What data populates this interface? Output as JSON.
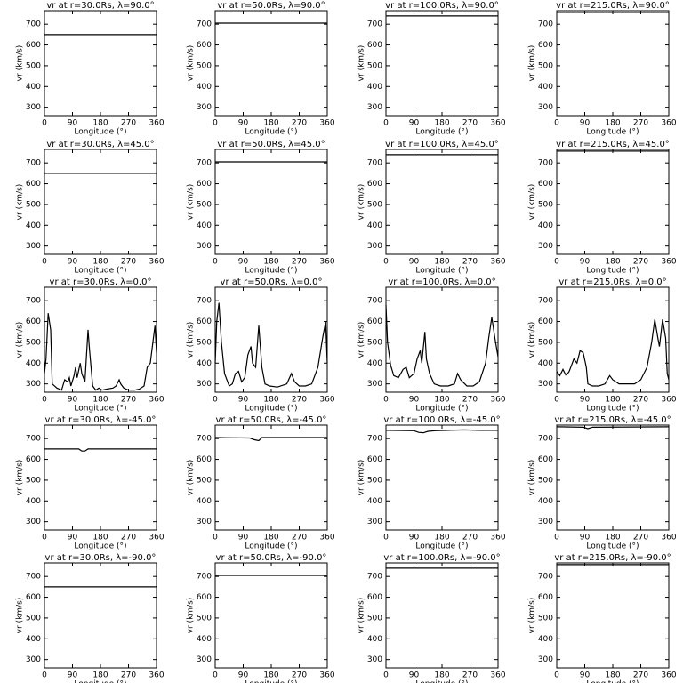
{
  "chart_data": [
    {
      "type": "line",
      "title": "vr at r=30.0Rs, λ=90.0°",
      "x_label": "Longitude (°)",
      "y_label": "vr (km/s)",
      "x": [
        0,
        360
      ],
      "values": [
        650,
        650
      ],
      "color": "#000000",
      "xlim": [
        0,
        360
      ],
      "xticks": [
        0,
        90,
        180,
        270,
        360
      ],
      "ylim": [
        260,
        765
      ],
      "yticks": [
        300,
        400,
        500,
        600,
        700
      ]
    },
    {
      "type": "line",
      "title": "vr at r=50.0Rs, λ=90.0°",
      "x_label": "Longitude (°)",
      "y_label": "vr (km/s)",
      "x": [
        0,
        360
      ],
      "values": [
        705,
        705
      ],
      "color": "#000000",
      "xlim": [
        0,
        360
      ],
      "xticks": [
        0,
        90,
        180,
        270,
        360
      ],
      "ylim": [
        260,
        765
      ],
      "yticks": [
        300,
        400,
        500,
        600,
        700
      ]
    },
    {
      "type": "line",
      "title": "vr at r=100.0Rs, λ=90.0°",
      "x_label": "Longitude (°)",
      "y_label": "vr (km/s)",
      "x": [
        0,
        360
      ],
      "values": [
        740,
        740
      ],
      "color": "#000000",
      "xlim": [
        0,
        360
      ],
      "xticks": [
        0,
        90,
        180,
        270,
        360
      ],
      "ylim": [
        260,
        765
      ],
      "yticks": [
        300,
        400,
        500,
        600,
        700
      ]
    },
    {
      "type": "line",
      "title": "vr at r=215.0Rs, λ=90.0°",
      "x_label": "Longitude (°)",
      "y_label": "vr (km/s)",
      "x": [
        0,
        360
      ],
      "values": [
        757,
        757
      ],
      "color": "#000000",
      "xlim": [
        0,
        360
      ],
      "xticks": [
        0,
        90,
        180,
        270,
        360
      ],
      "ylim": [
        260,
        765
      ],
      "yticks": [
        300,
        400,
        500,
        600,
        700
      ]
    },
    {
      "type": "line",
      "title": "vr at r=30.0Rs, λ=45.0°",
      "x_label": "Longitude (°)",
      "y_label": "vr (km/s)",
      "x": [
        0,
        360
      ],
      "values": [
        650,
        650
      ],
      "color": "#000000",
      "xlim": [
        0,
        360
      ],
      "xticks": [
        0,
        90,
        180,
        270,
        360
      ],
      "ylim": [
        260,
        765
      ],
      "yticks": [
        300,
        400,
        500,
        600,
        700
      ]
    },
    {
      "type": "line",
      "title": "vr at r=50.0Rs, λ=45.0°",
      "x_label": "Longitude (°)",
      "y_label": "vr (km/s)",
      "x": [
        0,
        360
      ],
      "values": [
        705,
        705
      ],
      "color": "#000000",
      "xlim": [
        0,
        360
      ],
      "xticks": [
        0,
        90,
        180,
        270,
        360
      ],
      "ylim": [
        260,
        765
      ],
      "yticks": [
        300,
        400,
        500,
        600,
        700
      ]
    },
    {
      "type": "line",
      "title": "vr at r=100.0Rs, λ=45.0°",
      "x_label": "Longitude (°)",
      "y_label": "vr (km/s)",
      "x": [
        0,
        360
      ],
      "values": [
        740,
        740
      ],
      "color": "#000000",
      "xlim": [
        0,
        360
      ],
      "xticks": [
        0,
        90,
        180,
        270,
        360
      ],
      "ylim": [
        260,
        765
      ],
      "yticks": [
        300,
        400,
        500,
        600,
        700
      ]
    },
    {
      "type": "line",
      "title": "vr at r=215.0Rs, λ=45.0°",
      "x_label": "Longitude (°)",
      "y_label": "vr (km/s)",
      "x": [
        0,
        360
      ],
      "values": [
        757,
        757
      ],
      "color": "#000000",
      "xlim": [
        0,
        360
      ],
      "xticks": [
        0,
        90,
        180,
        270,
        360
      ],
      "ylim": [
        260,
        765
      ],
      "yticks": [
        300,
        400,
        500,
        600,
        700
      ]
    },
    {
      "type": "line",
      "title": "vr at r=30.0Rs, λ=0.0°",
      "x_label": "Longitude (°)",
      "y_label": "vr (km/s)",
      "x": [
        0,
        5,
        12,
        20,
        25,
        40,
        55,
        65,
        75,
        80,
        85,
        95,
        100,
        105,
        115,
        120,
        130,
        140,
        145,
        155,
        165,
        175,
        185,
        200,
        220,
        230,
        240,
        245,
        255,
        270,
        290,
        305,
        320,
        330,
        340,
        350,
        355,
        360
      ],
      "values": [
        350,
        420,
        640,
        560,
        300,
        280,
        270,
        320,
        310,
        330,
        290,
        340,
        380,
        330,
        400,
        350,
        310,
        560,
        460,
        290,
        270,
        280,
        270,
        275,
        280,
        290,
        320,
        300,
        280,
        270,
        270,
        275,
        290,
        380,
        400,
        520,
        580,
        450
      ],
      "color": "#000000",
      "xlim": [
        0,
        360
      ],
      "xticks": [
        0,
        90,
        180,
        270,
        360
      ],
      "ylim": [
        260,
        765
      ],
      "yticks": [
        300,
        400,
        500,
        600,
        700
      ]
    },
    {
      "type": "line",
      "title": "vr at r=50.0Rs, λ=0.0°",
      "x_label": "Longitude (°)",
      "y_label": "vr (km/s)",
      "x": [
        0,
        5,
        12,
        20,
        30,
        45,
        55,
        65,
        75,
        85,
        95,
        105,
        115,
        120,
        130,
        140,
        150,
        160,
        175,
        200,
        230,
        245,
        255,
        270,
        290,
        310,
        330,
        345,
        355,
        360
      ],
      "values": [
        400,
        600,
        690,
        500,
        350,
        290,
        300,
        350,
        360,
        310,
        330,
        440,
        480,
        400,
        380,
        580,
        380,
        300,
        290,
        285,
        300,
        350,
        310,
        290,
        290,
        300,
        380,
        520,
        600,
        400
      ],
      "color": "#000000",
      "xlim": [
        0,
        360
      ],
      "xticks": [
        0,
        90,
        180,
        270,
        360
      ],
      "ylim": [
        260,
        765
      ],
      "yticks": [
        300,
        400,
        500,
        600,
        700
      ]
    },
    {
      "type": "line",
      "title": "vr at r=100.0Rs, λ=0.0°",
      "x_label": "Longitude (°)",
      "y_label": "vr (km/s)",
      "x": [
        0,
        5,
        15,
        25,
        40,
        55,
        65,
        75,
        90,
        100,
        110,
        115,
        125,
        130,
        140,
        155,
        175,
        200,
        220,
        230,
        240,
        260,
        280,
        300,
        320,
        330,
        340,
        350,
        360
      ],
      "values": [
        680,
        500,
        390,
        340,
        330,
        370,
        380,
        330,
        350,
        420,
        460,
        400,
        550,
        420,
        350,
        300,
        290,
        290,
        300,
        350,
        320,
        290,
        290,
        310,
        400,
        520,
        620,
        520,
        430
      ],
      "color": "#000000",
      "xlim": [
        0,
        360
      ],
      "xticks": [
        0,
        90,
        180,
        270,
        360
      ],
      "ylim": [
        260,
        765
      ],
      "yticks": [
        300,
        400,
        500,
        600,
        700
      ]
    },
    {
      "type": "line",
      "title": "vr at r=215.0Rs, λ=0.0°",
      "x_label": "Longitude (°)",
      "y_label": "vr (km/s)",
      "x": [
        0,
        10,
        20,
        30,
        40,
        55,
        65,
        75,
        85,
        95,
        100,
        115,
        135,
        155,
        170,
        180,
        200,
        220,
        250,
        270,
        290,
        305,
        315,
        325,
        330,
        340,
        350,
        355,
        360
      ],
      "values": [
        360,
        340,
        370,
        340,
        360,
        420,
        400,
        460,
        450,
        380,
        300,
        290,
        290,
        300,
        340,
        320,
        300,
        300,
        300,
        320,
        380,
        500,
        610,
        520,
        480,
        610,
        520,
        350,
        320
      ],
      "color": "#000000",
      "xlim": [
        0,
        360
      ],
      "xticks": [
        0,
        90,
        180,
        270,
        360
      ],
      "ylim": [
        260,
        765
      ],
      "yticks": [
        300,
        400,
        500,
        600,
        700
      ]
    },
    {
      "type": "line",
      "title": "vr at r=30.0Rs, λ=-45.0°",
      "x_label": "Longitude (°)",
      "y_label": "vr (km/s)",
      "x": [
        0,
        110,
        120,
        130,
        140,
        360
      ],
      "values": [
        650,
        650,
        640,
        640,
        650,
        650
      ],
      "color": "#000000",
      "xlim": [
        0,
        360
      ],
      "xticks": [
        0,
        90,
        180,
        270,
        360
      ],
      "ylim": [
        260,
        765
      ],
      "yticks": [
        300,
        400,
        500,
        600,
        700
      ]
    },
    {
      "type": "line",
      "title": "vr at r=50.0Rs, λ=-45.0°",
      "x_label": "Longitude (°)",
      "y_label": "vr (km/s)",
      "x": [
        0,
        110,
        125,
        140,
        150,
        360
      ],
      "values": [
        705,
        703,
        695,
        690,
        705,
        705
      ],
      "color": "#000000",
      "xlim": [
        0,
        360
      ],
      "xticks": [
        0,
        90,
        180,
        270,
        360
      ],
      "ylim": [
        260,
        765
      ],
      "yticks": [
        300,
        400,
        500,
        600,
        700
      ]
    },
    {
      "type": "line",
      "title": "vr at r=100.0Rs, λ=-45.0°",
      "x_label": "Longitude (°)",
      "y_label": "vr (km/s)",
      "x": [
        0,
        90,
        105,
        120,
        135,
        160,
        200,
        250,
        300,
        360
      ],
      "values": [
        740,
        738,
        730,
        728,
        735,
        738,
        740,
        742,
        740,
        740
      ],
      "color": "#000000",
      "xlim": [
        0,
        360
      ],
      "xticks": [
        0,
        90,
        180,
        270,
        360
      ],
      "ylim": [
        260,
        765
      ],
      "yticks": [
        300,
        400,
        500,
        600,
        700
      ]
    },
    {
      "type": "line",
      "title": "vr at r=215.0Rs, λ=-45.0°",
      "x_label": "Longitude (°)",
      "y_label": "vr (km/s)",
      "x": [
        0,
        85,
        100,
        115,
        360
      ],
      "values": [
        757,
        755,
        748,
        755,
        757
      ],
      "color": "#000000",
      "xlim": [
        0,
        360
      ],
      "xticks": [
        0,
        90,
        180,
        270,
        360
      ],
      "ylim": [
        260,
        765
      ],
      "yticks": [
        300,
        400,
        500,
        600,
        700
      ]
    },
    {
      "type": "line",
      "title": "vr at r=30.0Rs, λ=-90.0°",
      "x_label": "Longitude (°)",
      "y_label": "vr (km/s)",
      "x": [
        0,
        360
      ],
      "values": [
        650,
        650
      ],
      "color": "#000000",
      "xlim": [
        0,
        360
      ],
      "xticks": [
        0,
        90,
        180,
        270,
        360
      ],
      "ylim": [
        260,
        765
      ],
      "yticks": [
        300,
        400,
        500,
        600,
        700
      ]
    },
    {
      "type": "line",
      "title": "vr at r=50.0Rs, λ=-90.0°",
      "x_label": "Longitude (°)",
      "y_label": "vr (km/s)",
      "x": [
        0,
        360
      ],
      "values": [
        705,
        705
      ],
      "color": "#000000",
      "xlim": [
        0,
        360
      ],
      "xticks": [
        0,
        90,
        180,
        270,
        360
      ],
      "ylim": [
        260,
        765
      ],
      "yticks": [
        300,
        400,
        500,
        600,
        700
      ]
    },
    {
      "type": "line",
      "title": "vr at r=100.0Rs, λ=-90.0°",
      "x_label": "Longitude (°)",
      "y_label": "vr (km/s)",
      "x": [
        0,
        360
      ],
      "values": [
        740,
        740
      ],
      "color": "#000000",
      "xlim": [
        0,
        360
      ],
      "xticks": [
        0,
        90,
        180,
        270,
        360
      ],
      "ylim": [
        260,
        765
      ],
      "yticks": [
        300,
        400,
        500,
        600,
        700
      ]
    },
    {
      "type": "line",
      "title": "vr at r=215.0Rs, λ=-90.0°",
      "x_label": "Longitude (°)",
      "y_label": "vr (km/s)",
      "x": [
        0,
        360
      ],
      "values": [
        757,
        757
      ],
      "color": "#000000",
      "xlim": [
        0,
        360
      ],
      "xticks": [
        0,
        90,
        180,
        270,
        360
      ],
      "ylim": [
        260,
        765
      ],
      "yticks": [
        300,
        400,
        500,
        600,
        700
      ]
    }
  ]
}
